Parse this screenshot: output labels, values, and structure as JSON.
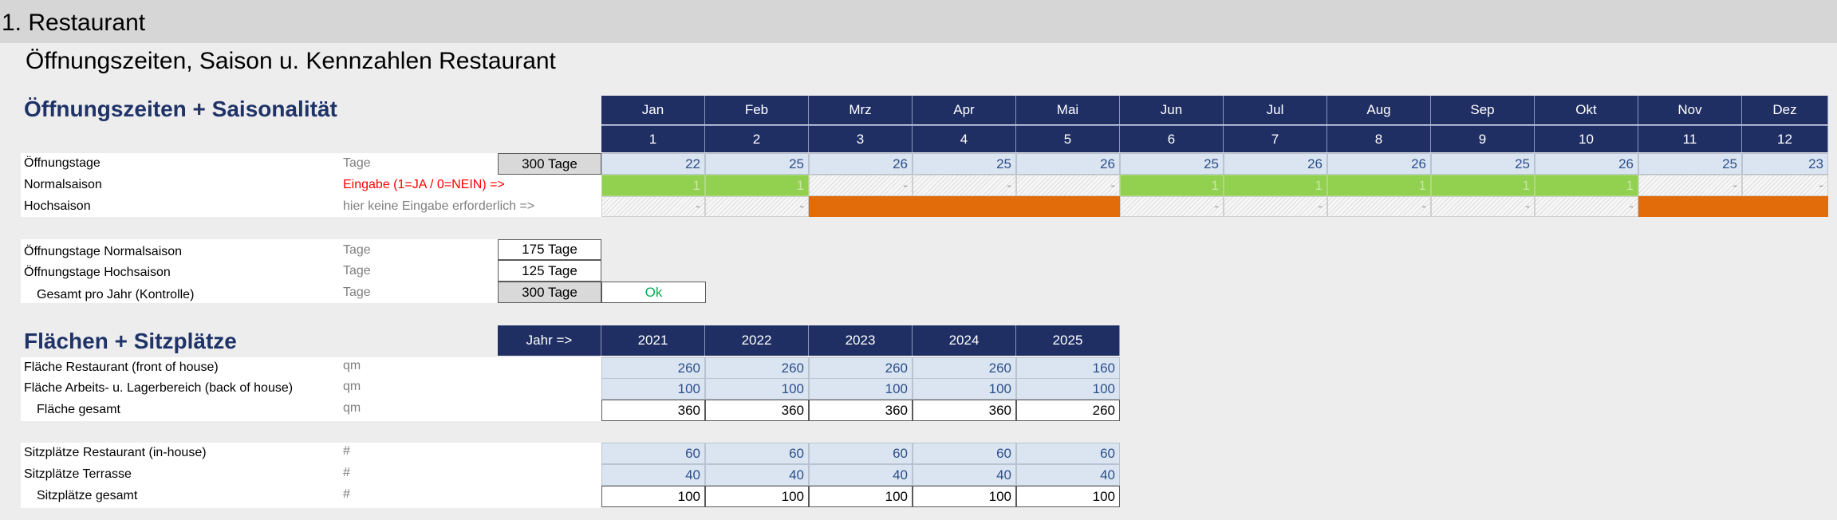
{
  "page": {
    "title": "1. Restaurant",
    "subtitle": "Öffnungszeiten, Saison u. Kennzahlen Restaurant"
  },
  "opening": {
    "section_title": "Öffnungszeiten + Saisonalität",
    "months": [
      "Jan",
      "Feb",
      "Mrz",
      "Apr",
      "Mai",
      "Jun",
      "Jul",
      "Aug",
      "Sep",
      "Okt",
      "Nov",
      "Dez"
    ],
    "month_numbers": [
      "1",
      "2",
      "3",
      "4",
      "5",
      "6",
      "7",
      "8",
      "9",
      "10",
      "11",
      "12"
    ],
    "rows": {
      "tage": {
        "label": "Öffnungstage",
        "unit": "Tage",
        "total": "300 Tage",
        "values": [
          "22",
          "25",
          "26",
          "25",
          "26",
          "25",
          "26",
          "26",
          "25",
          "26",
          "25",
          "23"
        ]
      },
      "normal": {
        "label": "Normalsaison",
        "hint": "Eingabe (1=JA / 0=NEIN) =>",
        "values": [
          "1",
          "1",
          "-",
          "-",
          "-",
          "1",
          "1",
          "1",
          "1",
          "1",
          "-",
          "-"
        ]
      },
      "hoch": {
        "label": "Hochsaison",
        "hint": "hier keine Eingabe erforderlich =>",
        "values": [
          "-",
          "-",
          "1",
          "1",
          "1",
          "-",
          "-",
          "-",
          "-",
          "-",
          "1",
          "1"
        ]
      }
    },
    "summary": [
      {
        "label": "Öffnungstage Normalsaison",
        "unit": "Tage",
        "value": "175 Tage"
      },
      {
        "label": "Öffnungstage Hochsaison",
        "unit": "Tage",
        "value": "125 Tage"
      },
      {
        "label": "Gesamt pro Jahr (Kontrolle)",
        "unit": "Tage",
        "value": "300 Tage",
        "check": "Ok"
      }
    ],
    "colors": {
      "normal": "#92d050",
      "hoch": "#e36c0a",
      "ok": "#00b050",
      "hint_red": "#ff0000"
    }
  },
  "areas": {
    "section_title": "Flächen + Sitzplätze",
    "year_label": "Jahr =>",
    "years": [
      "2021",
      "2022",
      "2023",
      "2024",
      "2025"
    ],
    "rows": [
      {
        "label": "Fläche Restaurant (front of house)",
        "unit": "qm",
        "values": [
          "260",
          "260",
          "260",
          "260",
          "160"
        ],
        "style": "blue"
      },
      {
        "label": "Fläche Arbeits- u. Lagerbereich (back of house)",
        "unit": "qm",
        "values": [
          "100",
          "100",
          "100",
          "100",
          "100"
        ],
        "style": "blue"
      },
      {
        "label": "Fläche gesamt",
        "unit": "qm",
        "values": [
          "360",
          "360",
          "360",
          "360",
          "260"
        ],
        "style": "plain"
      },
      {
        "label": "Sitzplätze Restaurant (in-house)",
        "unit": "#",
        "values": [
          "60",
          "60",
          "60",
          "60",
          "60"
        ],
        "style": "blue"
      },
      {
        "label": "Sitzplätze Terrasse",
        "unit": "#",
        "values": [
          "40",
          "40",
          "40",
          "40",
          "40"
        ],
        "style": "blue"
      },
      {
        "label": "Sitzplätze gesamt",
        "unit": "#",
        "values": [
          "100",
          "100",
          "100",
          "100",
          "100"
        ],
        "style": "plain"
      }
    ]
  }
}
